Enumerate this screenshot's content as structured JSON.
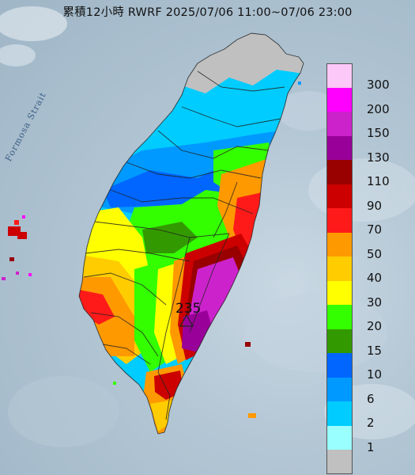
{
  "title": "累積12小時 RWRF 2025/07/06 11:00~07/06 23:00",
  "strait_label": "Formosa Strait",
  "max_value": "235",
  "legend": {
    "items": [
      {
        "color": "#fbc8f7",
        "label": "300"
      },
      {
        "color": "#ff00ff",
        "label": "200"
      },
      {
        "color": "#cc22cc",
        "label": "150"
      },
      {
        "color": "#990099",
        "label": "130"
      },
      {
        "color": "#990000",
        "label": "110"
      },
      {
        "color": "#cc0000",
        "label": "90"
      },
      {
        "color": "#ff1a1a",
        "label": "70"
      },
      {
        "color": "#ff9900",
        "label": "50"
      },
      {
        "color": "#ffcc00",
        "label": "40"
      },
      {
        "color": "#ffff00",
        "label": "30"
      },
      {
        "color": "#33ff00",
        "label": "20"
      },
      {
        "color": "#339900",
        "label": "15"
      },
      {
        "color": "#0066ff",
        "label": "10"
      },
      {
        "color": "#0099ff",
        "label": "6"
      },
      {
        "color": "#00ccff",
        "label": "2"
      },
      {
        "color": "#99ffff",
        "label": "1"
      },
      {
        "color": "#c0c0c0",
        "label": ""
      }
    ]
  }
}
